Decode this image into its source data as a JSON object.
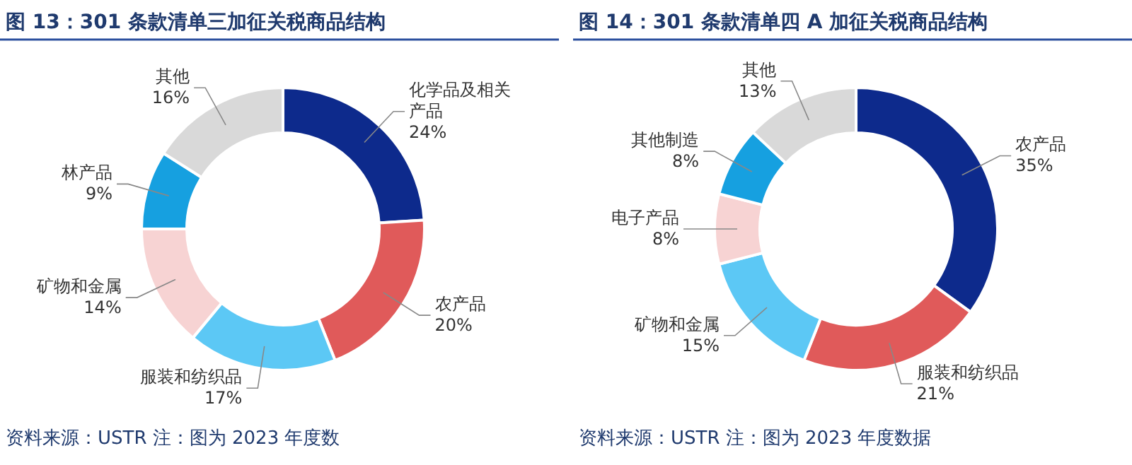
{
  "chart_data": [
    {
      "type": "donut",
      "title": "图 13：301 条款清单三加征关税商品结构",
      "categories": [
        "化学品及相关产品",
        "农产品",
        "服装和纺织品",
        "矿物和金属",
        "林产品",
        "其他"
      ],
      "values": [
        24,
        20,
        17,
        14,
        9,
        16
      ],
      "value_labels": [
        "24%",
        "20%",
        "17%",
        "14%",
        "9%",
        "16%"
      ],
      "colors": [
        "#0d2a8c",
        "#e05a5a",
        "#5cc8f5",
        "#f7d3d3",
        "#16a0e0",
        "#d9d9d9"
      ],
      "annotations": [
        "资料来源：USTR 注：图为 2023 年度数"
      ]
    },
    {
      "type": "donut",
      "title": "图 14：301 条款清单四 A 加征关税商品结构",
      "categories": [
        "农产品",
        "服装和纺织品",
        "矿物和金属",
        "电子产品",
        "其他制造",
        "其他"
      ],
      "values": [
        35,
        21,
        15,
        8,
        8,
        13
      ],
      "value_labels": [
        "35%",
        "21%",
        "15%",
        "8%",
        "8%",
        "13%"
      ],
      "colors": [
        "#0d2a8c",
        "#e05a5a",
        "#5cc8f5",
        "#f7d3d3",
        "#16a0e0",
        "#d9d9d9"
      ],
      "annotations": [
        "资料来源：USTR 注：图为 2023 年度数据"
      ]
    }
  ]
}
